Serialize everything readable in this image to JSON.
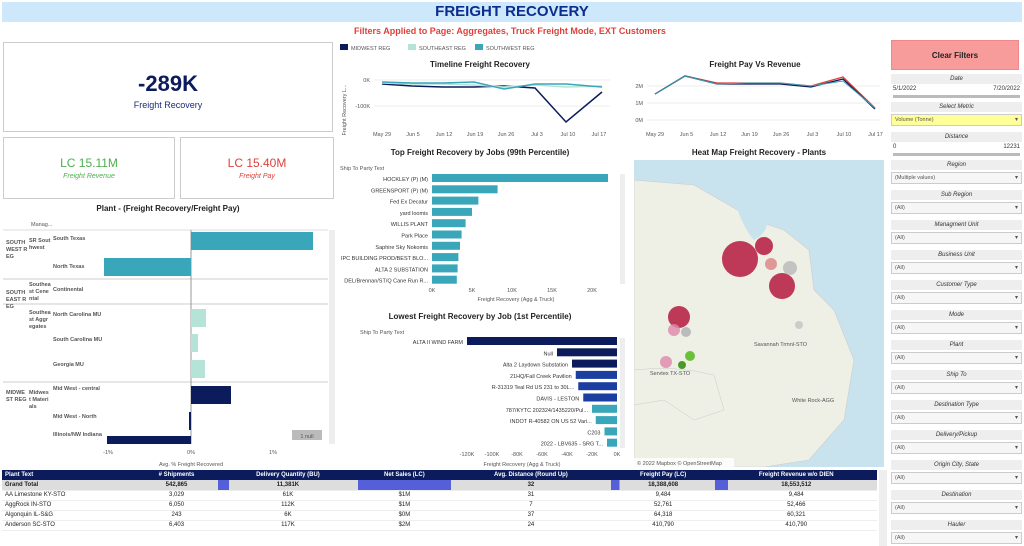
{
  "header": {
    "title": "FREIGHT RECOVERY",
    "filters": "Filters Applied to Page: Aggregates, Truck Freight Mode, EXT Customers"
  },
  "kpi": {
    "main_value": "-289K",
    "main_label": "Freight Recovery",
    "rev_value": "LC 15.11M",
    "rev_label": "Freight Revenue",
    "pay_value": "LC 15.40M",
    "pay_label": "Freight Pay"
  },
  "plant_chart": {
    "title": "Plant - (Freight Recovery/Freight Pay)",
    "manager_label": "Manag...",
    "null_badge": "1 null",
    "x_ticks": [
      "-1%",
      "0%",
      "1%"
    ],
    "x_label": "Avg. % Freight Recovered",
    "regions": [
      "SOUTH WEST R EG",
      "SOUTH EAST R EG",
      "MIDWE ST REG"
    ],
    "subregions": [
      "SR Sout hwest",
      "Southea st Cene ntal",
      "Southea st Aggr egates",
      "Midwes t Materi als"
    ],
    "managers": [
      "South Texas",
      "North Texas",
      "Continental",
      "North Carolina MU",
      "South Carolina MU",
      "Georgia MU",
      "Mid West - central",
      "Mid West - North",
      "Illinois/NW Indiana"
    ]
  },
  "legend": {
    "items": [
      "MIDWEST REG",
      "SOUTHEAST REG",
      "SOUTHWEST REG"
    ],
    "colors": [
      "#0c1b5b",
      "#b5e3d8",
      "#3aa6b9"
    ]
  },
  "timeline": {
    "title": "Timeline Freight Recovery",
    "y_label": "Freight Recovery L...",
    "x_ticks": [
      "May 29",
      "Jun 5",
      "Jun 12",
      "Jun 19",
      "Jun 26",
      "Jul 3",
      "Jul 10",
      "Jul 17"
    ],
    "y_ticks": [
      "0K",
      "-100K"
    ]
  },
  "paychart": {
    "title": "Freight Pay Vs Revenue",
    "x_ticks": [
      "May 29",
      "Jun 5",
      "Jun 12",
      "Jun 19",
      "Jun 26",
      "Jul 3",
      "Jul 10",
      "Jul 17"
    ],
    "y_ticks": [
      "2M",
      "1M",
      "0M"
    ]
  },
  "top_jobs": {
    "title": "Top Freight Recovery by Jobs (99th Percentile)",
    "axis_title": "Ship To Party Text",
    "x_label": "Freight Recovery (Agg & Truck)",
    "x_ticks": [
      "0K",
      "5K",
      "10K",
      "15K",
      "20K"
    ],
    "labels": [
      "HOCKLEY (P) (M)",
      "GREENSPORT (P) (M)",
      "Fed Ex Decatur",
      "yard loomis",
      "WILLIS PLANT",
      "Park Place",
      "Saphire Sky Nokomis",
      "IPC BUILDING PROD/BEST BLO...",
      "ALTA 2 SUBSTATION",
      "DEL/Brennan/ST/Q Cane Run R..."
    ],
    "values": [
      22000,
      8200,
      5800,
      5000,
      4200,
      3700,
      3500,
      3300,
      3200,
      3100
    ]
  },
  "low_jobs": {
    "title": "Lowest Freight Recovery by Job (1st Percentile)",
    "axis_title": "Ship To Party Text",
    "x_label": "Freight Recovery (Agg & Truck)",
    "x_ticks": [
      "-120K",
      "-100K",
      "-80K",
      "-60K",
      "-40K",
      "-20K",
      "0K"
    ],
    "labels": [
      "ALTA II WIND FARM",
      "Null",
      "Alta 2 Laydown Substation",
      "21HQ/Fall Creek Pavilion",
      "R-31319 Teal Rd US 231 to 30L...",
      "DAVIS - LESTON",
      "787/KYTC 202324/1435220/Pul...",
      "INDOT R-40582 ON US 52 Vari...",
      "C203",
      "2022 - LBV635 - SRG T..."
    ],
    "values": [
      -120000,
      -48000,
      -36000,
      -33000,
      -31000,
      -27000,
      -20000,
      -17000,
      -10000,
      -8000
    ]
  },
  "map": {
    "title": "Heat Map Freight Recovery - Plants",
    "labels": [
      "Savannah Trmnl-STO",
      "Servtex TX-STO",
      "White Rock-AGG"
    ],
    "attribution": "© 2022 Mapbox © OpenStreetMap"
  },
  "sidebar": {
    "clear": "Clear Filters",
    "date_label": "Date",
    "date_from": "5/1/2022",
    "date_to": "7/20/2022",
    "metric_label": "Select Metric",
    "metric_value": "Volume (Tonne)",
    "distance_label": "Distance",
    "distance_from": "0",
    "distance_to": "12231",
    "filters": [
      {
        "label": "Region",
        "value": "(Multiple values)"
      },
      {
        "label": "Sub Region",
        "value": "(All)"
      },
      {
        "label": "Managment Unit",
        "value": "(All)"
      },
      {
        "label": "Business Unit",
        "value": "(All)"
      },
      {
        "label": "Customer Type",
        "value": "(All)"
      },
      {
        "label": "Mode",
        "value": "(All)"
      },
      {
        "label": "Plant",
        "value": "(All)"
      },
      {
        "label": "Ship To",
        "value": "(All)"
      },
      {
        "label": "Destination Type",
        "value": "(All)"
      },
      {
        "label": "Delivery/Pickup",
        "value": "(All)"
      },
      {
        "label": "Origin City, State",
        "value": "(All)"
      },
      {
        "label": "Destination",
        "value": "(All)"
      },
      {
        "label": "Hauler",
        "value": "(All)"
      }
    ]
  },
  "table": {
    "headers": [
      "Plant Text",
      "# Shipments",
      "Delivery Quantity (BU)",
      "Net Sales (LC)",
      "Avg. Distance (Round Up)",
      "Freight Pay (LC)",
      "Freight Revenue w/o DIEN"
    ],
    "rows": [
      [
        "Grand Total",
        "542,865",
        "11,381K",
        "",
        "32",
        "18,388,608",
        "18,553,512"
      ],
      [
        "AA Limestone KY-STO",
        "3,029",
        "61K",
        "$1M",
        "31",
        "9,484",
        "9,484"
      ],
      [
        "AggRock IN-STO",
        "6,050",
        "112K",
        "$1M",
        "7",
        "52,761",
        "52,466"
      ],
      [
        "Algonquin IL-S&G",
        "243",
        "6K",
        "$0M",
        "37",
        "64,318",
        "60,321"
      ],
      [
        "Anderson SC-STO",
        "6,403",
        "117K",
        "$2M",
        "24",
        "410,790",
        "410,790"
      ]
    ]
  }
}
